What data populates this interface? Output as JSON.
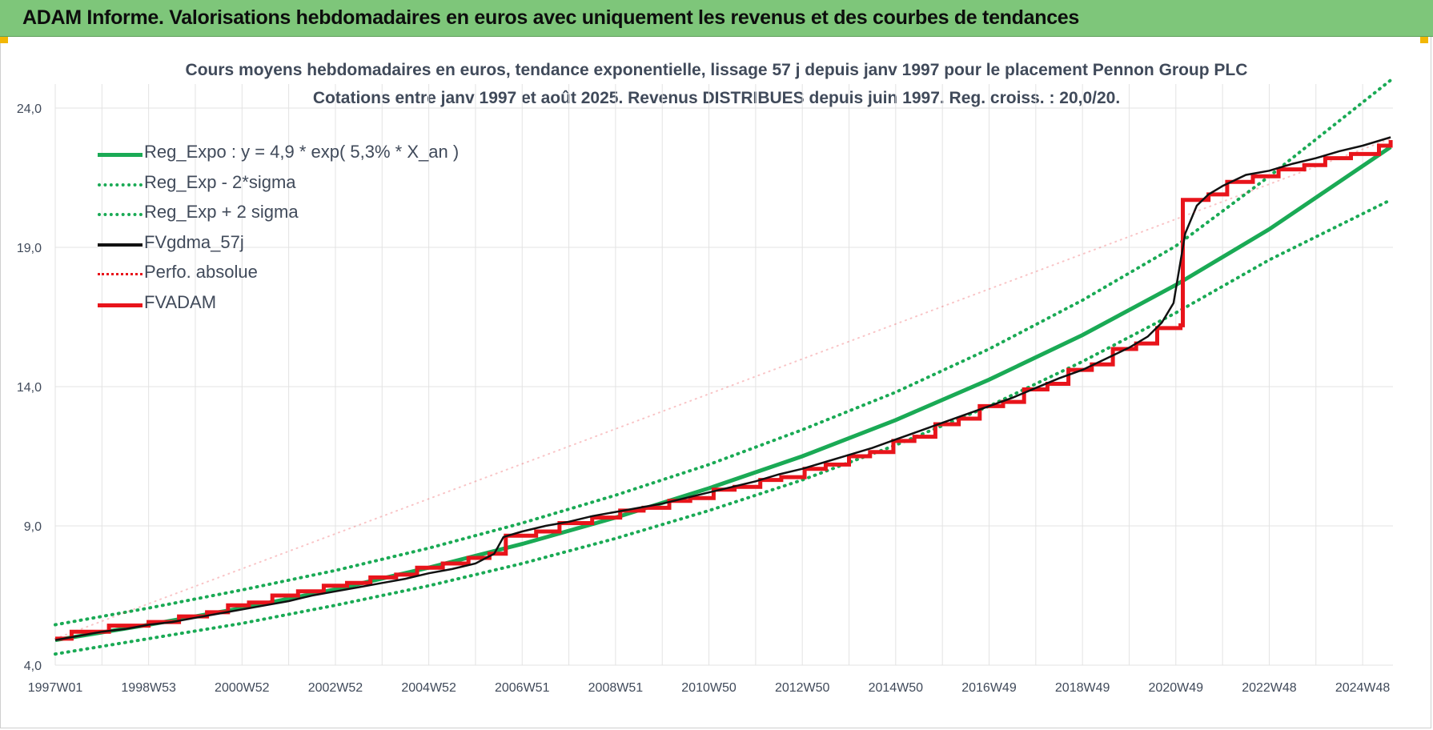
{
  "banner": {
    "title": "ADAM Informe. Valorisations hebdomadaires en euros avec uniquement les revenus et des courbes de tendances"
  },
  "colors": {
    "banner_bg": "#7ec67a",
    "trend_green": "#1aaa55",
    "series_black": "#111111",
    "series_red": "#e8141b",
    "text": "#404a5a",
    "grid": "#e3e3e3"
  },
  "chart_data": {
    "type": "line",
    "title": "Cours moyens hebdomadaires en euros, tendance exponentielle, lissage 57 j depuis janv 1997  pour le placement Pennon Group PLC",
    "subtitle": "Cotations entre janv 1997 et août 2025. Revenus DISTRIBUES depuis juin 1997. Reg. croiss. : 20,0/20.",
    "xlabel": "",
    "ylabel": "",
    "ylim": [
      4.0,
      24.0
    ],
    "xlim": [
      1997.0,
      2025.65
    ],
    "y_ticks": [
      "4,0",
      "9,0",
      "14,0",
      "19,0",
      "24,0"
    ],
    "y_tick_values": [
      4,
      9,
      14,
      19,
      24
    ],
    "x_ticks": [
      "1997W01",
      "1998W53",
      "2000W52",
      "2002W52",
      "2004W52",
      "2006W51",
      "2008W51",
      "2010W50",
      "2012W50",
      "2014W50",
      "2016W49",
      "2018W49",
      "2020W49",
      "2022W48",
      "2024W48"
    ],
    "x_tick_values": [
      1997.0,
      1999.0,
      2001.0,
      2003.0,
      2005.0,
      2007.0,
      2009.0,
      2011.0,
      2013.0,
      2015.0,
      2017.0,
      2019.0,
      2021.0,
      2023.0,
      2025.0
    ],
    "grid": true,
    "legend_position": "top-left",
    "legend": [
      {
        "label": "Reg_Expo : y = 4,9 * exp( 5,3% *  X_an )",
        "style": "solid",
        "color": "#1aaa55"
      },
      {
        "label": "Reg_Exp - 2*sigma",
        "style": "dotted",
        "color": "#1aaa55"
      },
      {
        "label": "Reg_Exp + 2 sigma",
        "style": "dotted",
        "color": "#1aaa55"
      },
      {
        "label": "FVgdma_57j",
        "style": "solid",
        "color": "#111111"
      },
      {
        "label": "Perfo. absolue",
        "style": "dotted",
        "color": "#e8141b"
      },
      {
        "label": "FVADAM",
        "style": "solid",
        "color": "#e8141b"
      }
    ],
    "series": [
      {
        "name": "Reg_Expo : y = 4,9 * exp( 5,3% *  X_an )",
        "x": [
          1997.0,
          1999.0,
          2001.0,
          2003.0,
          2005.0,
          2007.0,
          2009.0,
          2011.0,
          2013.0,
          2015.0,
          2017.0,
          2019.0,
          2021.0,
          2023.0,
          2025.6
        ],
        "values": [
          4.9,
          5.45,
          6.05,
          6.72,
          7.5,
          8.35,
          9.3,
          10.35,
          11.5,
          12.8,
          14.25,
          15.85,
          17.65,
          19.65,
          22.6
        ]
      },
      {
        "name": "Reg_Exp - 2*sigma",
        "x": [
          1997.0,
          1999.0,
          2001.0,
          2003.0,
          2005.0,
          2007.0,
          2009.0,
          2011.0,
          2013.0,
          2015.0,
          2017.0,
          2019.0,
          2021.0,
          2023.0,
          2025.6
        ],
        "values": [
          4.4,
          4.95,
          5.5,
          6.15,
          6.85,
          7.65,
          8.55,
          9.55,
          10.65,
          11.9,
          13.3,
          14.9,
          16.65,
          18.55,
          20.7
        ]
      },
      {
        "name": "Reg_Exp + 2 sigma",
        "x": [
          1997.0,
          1999.0,
          2001.0,
          2003.0,
          2005.0,
          2007.0,
          2009.0,
          2011.0,
          2013.0,
          2015.0,
          2017.0,
          2019.0,
          2021.0,
          2023.0,
          2025.6
        ],
        "values": [
          5.45,
          6.05,
          6.7,
          7.4,
          8.2,
          9.1,
          10.1,
          11.2,
          12.45,
          13.8,
          15.35,
          17.1,
          19.05,
          21.55,
          25.0
        ]
      },
      {
        "name": "FVgdma_57j",
        "x": [
          1997.0,
          1997.5,
          1998.0,
          1998.5,
          1999.0,
          1999.5,
          2000.0,
          2000.5,
          2001.0,
          2001.5,
          2002.0,
          2002.5,
          2003.0,
          2003.5,
          2004.0,
          2004.5,
          2005.0,
          2005.5,
          2006.0,
          2006.4,
          2006.6,
          2007.0,
          2007.5,
          2008.0,
          2008.5,
          2009.0,
          2009.5,
          2010.0,
          2010.5,
          2011.0,
          2011.5,
          2012.0,
          2012.5,
          2013.0,
          2013.5,
          2014.0,
          2014.5,
          2015.0,
          2015.5,
          2016.0,
          2016.5,
          2017.0,
          2017.5,
          2018.0,
          2018.5,
          2019.0,
          2019.5,
          2020.0,
          2020.4,
          2020.7,
          2020.95,
          2021.2,
          2021.45,
          2021.7,
          2022.0,
          2022.5,
          2023.0,
          2023.5,
          2024.0,
          2024.5,
          2025.0,
          2025.6
        ],
        "values": [
          4.9,
          5.05,
          5.2,
          5.3,
          5.45,
          5.55,
          5.7,
          5.85,
          6.0,
          6.15,
          6.3,
          6.5,
          6.65,
          6.8,
          6.95,
          7.1,
          7.3,
          7.45,
          7.65,
          8.0,
          8.6,
          8.8,
          9.0,
          9.15,
          9.35,
          9.5,
          9.65,
          9.8,
          10.0,
          10.2,
          10.4,
          10.6,
          10.85,
          11.05,
          11.3,
          11.55,
          11.8,
          12.1,
          12.4,
          12.7,
          13.0,
          13.3,
          13.6,
          13.95,
          14.3,
          14.6,
          15.0,
          15.4,
          15.8,
          16.3,
          17.0,
          19.5,
          20.5,
          20.9,
          21.2,
          21.6,
          21.75,
          22.0,
          22.2,
          22.45,
          22.65,
          22.95
        ]
      },
      {
        "name": "Perfo. absolue",
        "x": [
          1997.0,
          2025.6
        ],
        "values": [
          4.95,
          22.9
        ]
      },
      {
        "name": "FVADAM",
        "x": [
          1997.0,
          2025.6
        ],
        "values": [
          4.95,
          22.9
        ],
        "steps": [
          [
            1997.0,
            4.95
          ],
          [
            1997.35,
            5.2
          ],
          [
            1998.15,
            5.42
          ],
          [
            1999.0,
            5.55
          ],
          [
            1999.65,
            5.75
          ],
          [
            2000.25,
            5.9
          ],
          [
            2000.7,
            6.15
          ],
          [
            2001.15,
            6.25
          ],
          [
            2001.65,
            6.5
          ],
          [
            2002.2,
            6.65
          ],
          [
            2002.75,
            6.85
          ],
          [
            2003.25,
            6.95
          ],
          [
            2003.75,
            7.15
          ],
          [
            2004.3,
            7.25
          ],
          [
            2004.75,
            7.5
          ],
          [
            2005.3,
            7.65
          ],
          [
            2005.85,
            7.85
          ],
          [
            2006.3,
            8.0
          ],
          [
            2006.65,
            8.65
          ],
          [
            2007.3,
            8.8
          ],
          [
            2007.8,
            9.1
          ],
          [
            2008.5,
            9.3
          ],
          [
            2009.1,
            9.55
          ],
          [
            2009.6,
            9.65
          ],
          [
            2010.15,
            9.9
          ],
          [
            2010.6,
            10.0
          ],
          [
            2011.1,
            10.3
          ],
          [
            2011.55,
            10.4
          ],
          [
            2012.1,
            10.65
          ],
          [
            2012.55,
            10.75
          ],
          [
            2013.05,
            11.05
          ],
          [
            2013.5,
            11.2
          ],
          [
            2014.0,
            11.5
          ],
          [
            2014.45,
            11.65
          ],
          [
            2014.95,
            12.05
          ],
          [
            2015.4,
            12.2
          ],
          [
            2015.85,
            12.65
          ],
          [
            2016.35,
            12.85
          ],
          [
            2016.8,
            13.3
          ],
          [
            2017.3,
            13.45
          ],
          [
            2017.75,
            13.9
          ],
          [
            2018.25,
            14.1
          ],
          [
            2018.7,
            14.6
          ],
          [
            2019.2,
            14.8
          ],
          [
            2019.65,
            15.35
          ],
          [
            2020.15,
            15.55
          ],
          [
            2020.6,
            16.1
          ],
          [
            2021.1,
            16.2
          ],
          [
            2021.15,
            20.7
          ],
          [
            2021.7,
            20.9
          ],
          [
            2022.1,
            21.35
          ],
          [
            2022.65,
            21.55
          ],
          [
            2023.2,
            21.8
          ],
          [
            2023.75,
            21.95
          ],
          [
            2024.2,
            22.2
          ],
          [
            2024.75,
            22.35
          ],
          [
            2025.35,
            22.65
          ],
          [
            2025.6,
            22.85
          ]
        ]
      }
    ]
  }
}
